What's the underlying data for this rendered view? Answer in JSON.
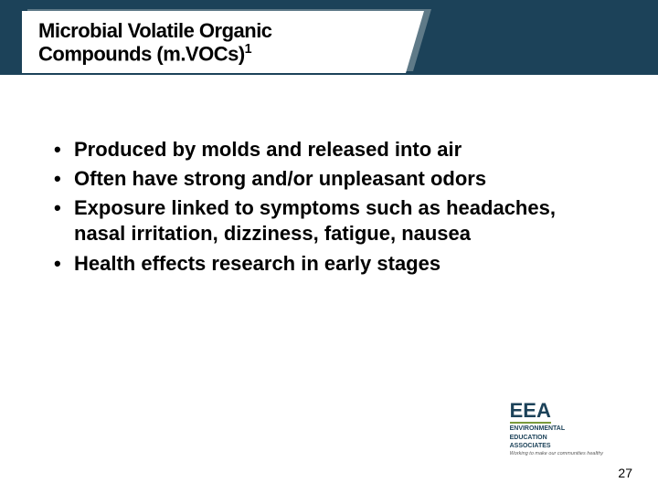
{
  "colors": {
    "header_band": "#1c4259",
    "tab_shadow": "#5f7a88",
    "tab_bg": "#ffffff",
    "text": "#000000",
    "logo_primary": "#1c4259",
    "logo_accent": "#7a9a3a",
    "logo_tagline": "#5a5a5a",
    "background": "#ffffff"
  },
  "title": {
    "line1": "Microbial Volatile Organic",
    "line2": "Compounds (m.VOCs)",
    "superscript": "1",
    "fontsize": 22,
    "fontweight": 900
  },
  "bullets": {
    "fontsize": 22,
    "fontweight": 700,
    "items": [
      "Produced by molds and released into air",
      "Often have strong and/or unpleasant odors",
      "Exposure linked to symptoms such as headaches, nasal irritation, dizziness, fatigue, nausea",
      "Health effects research in early stages"
    ]
  },
  "logo": {
    "main": "EEA",
    "sub1": "ENVIRONMENTAL",
    "sub2": "EDUCATION",
    "sub3": "ASSOCIATES",
    "tagline": "Working to make our communities healthy"
  },
  "page_number": "27"
}
